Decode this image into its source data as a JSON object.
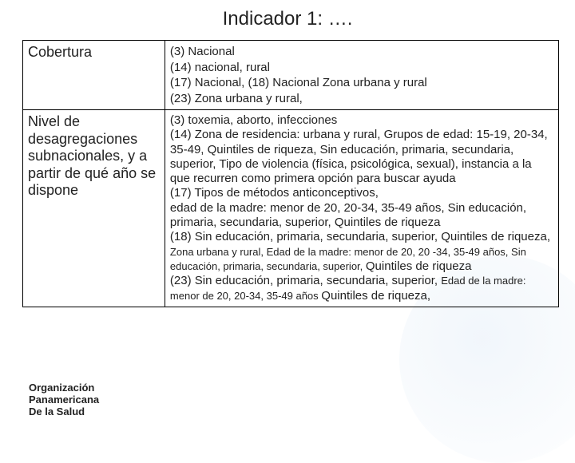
{
  "title": "Indicador 1: ….",
  "table": {
    "rows": [
      {
        "label": "Cobertura",
        "content": "(3) Nacional\n(14) nacional, rural\n(17) Nacional, (18) Nacional Zona urbana y rural\n(23) Zona urbana y rural,"
      },
      {
        "label": "Nivel de desagregaciones subnacionales, y a partir de qué año se dispone",
        "content_parts": [
          {
            "text": "(3) toxemia, aborto, infecciones",
            "small": false
          },
          {
            "text": "(14) Zona de residencia: urbana y rural, Grupos de edad: 15-19, 20-34, 35-49, Quintiles de riqueza, Sin educación, primaria, secundaria, superior, Tipo de violencia (física, psicológica, sexual), instancia a la que recurren como primera opción para buscar ayuda",
            "small": false
          },
          {
            "text": "(17) Tipos de métodos anticonceptivos,",
            "small": false
          },
          {
            "text": " edad de la madre: menor de 20, 20-34, 35-49 años, Sin educación, primaria, secundaria, superior, Quintiles de riqueza",
            "small": false
          },
          {
            "text": "(18) Sin educación, primaria, secundaria, superior, Quintiles de riqueza, ",
            "small": false,
            "inline_next": true
          },
          {
            "text": "Zona urbana y rural, Edad de la madre: menor de 20, 20 -34, 35-49 años, Sin educación, primaria, secundaria, superior, ",
            "small": true,
            "inline_next": true
          },
          {
            "text": "Quintiles de riqueza",
            "small": false
          },
          {
            "text": "(23) Sin educación, primaria, secundaria, superior, ",
            "small": false,
            "inline_next": true
          },
          {
            "text": "Edad de la madre: menor de 20, 20-34, 35-49 años ",
            "small": true,
            "inline_next": true
          },
          {
            "text": "Quintiles de riqueza,",
            "small": false
          }
        ]
      }
    ]
  },
  "org": {
    "line1": "Organización",
    "line2": "Panamericana",
    "line3": "De la Salud"
  },
  "colors": {
    "text": "#222222",
    "border": "#000000",
    "bg": "#ffffff"
  }
}
